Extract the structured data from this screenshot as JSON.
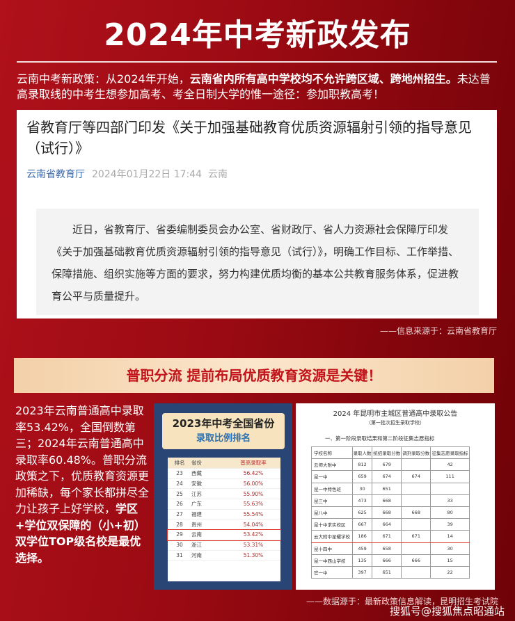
{
  "title": "2024年中考新政发布",
  "intro": {
    "prefix": "云南中考新政策：从2024年开始，",
    "bold": "云南省内所有高中学校均不允许跨区域、跨地州招生。",
    "suffix": "未达普高录取线的中考生想参加高考、考全日制大学的惟一途径：参加职教高考！"
  },
  "article": {
    "title": "省教育厅等四部门印发《关于加强基础教育优质资源辐射引领的指导意见（试行）》",
    "org": "云南省教育厅",
    "date": "2024年01月22日 17:44",
    "location": "云南",
    "body": "近日，省教育厅、省委编制委员会办公室、省财政厅、省人力资源社会保障厅印发《关于加强基础教育优质资源辐射引领的指导意见（试行）》，明确工作目标、工作举措、保障措施、组织实施等方面的要求，努力构建优质均衡的基本公共教育服务体系，促进教育公平与质量提升。"
  },
  "source1": "——信息来源于：云南省教育厅",
  "banner": "普职分流 提前布局优质教育资源是关键！",
  "left_text": {
    "normal": "2023年云南普通高中录取率53.42%，全国倒数第三；2024年云南普通高中录取率60.48%。普职分流政策之下，优质教育资源更加稀缺，每个家长都拼尽全力让孩子上好学校，",
    "bold": "学区+学位双保障的（小+初）双学位TOP级名校是最优选择。"
  },
  "ranking": {
    "title1": "2023年中考全国省份",
    "title2": "录取比例排名",
    "headers": [
      "排名",
      "省份",
      "普高录取率"
    ],
    "rows": [
      [
        "23",
        "西藏",
        "56.42%"
      ],
      [
        "24",
        "安徽",
        "56.00%"
      ],
      [
        "25",
        "江苏",
        "55.90%"
      ],
      [
        "26",
        "广东",
        "55.63%"
      ],
      [
        "27",
        "福建",
        "55.54%"
      ],
      [
        "28",
        "贵州",
        "54.04%"
      ],
      [
        "29",
        "云南",
        "53.42%"
      ],
      [
        "30",
        "浙江",
        "53.31%"
      ],
      [
        "31",
        "河南",
        "51.30%"
      ]
    ],
    "highlight": "29"
  },
  "notice": {
    "title": "2024 年昆明市主城区普通高中录取公告",
    "subtitle": "（第一批次招生录取学校）",
    "section": "一、第一阶段录取结果和第二阶段征集志愿指标",
    "headers": [
      "学校名称",
      "录取人数",
      "统招录取分数",
      "调剂录取分数",
      "征集志愿录取指标"
    ],
    "rows": [
      [
        "云师大附中",
        "812",
        "679",
        "",
        "42"
      ],
      [
        "昆一中",
        "659",
        "674",
        "674",
        "111"
      ],
      [
        "昆一中特色班",
        "30",
        "651",
        "",
        ""
      ],
      [
        "昆三中",
        "473",
        "668",
        "",
        "33"
      ],
      [
        "昆八中",
        "625",
        "668",
        "668",
        "80"
      ],
      [
        "昆十中求实校区",
        "667",
        "664",
        "",
        "39"
      ],
      [
        "云大附中星耀学校",
        "186",
        "671",
        "671",
        "14"
      ],
      [
        "昆十四中",
        "459",
        "658",
        "",
        "30"
      ],
      [
        "昆一中西山学校",
        "135",
        "666",
        "666",
        "15"
      ],
      [
        "官一中",
        "397",
        "651",
        "",
        "22"
      ]
    ],
    "highlight": "云大附中星耀学校"
  },
  "source2": "——数据源于：最新政策信息解读，昆明招生考试院",
  "watermark": "搜狐号@搜狐焦点昭通站"
}
